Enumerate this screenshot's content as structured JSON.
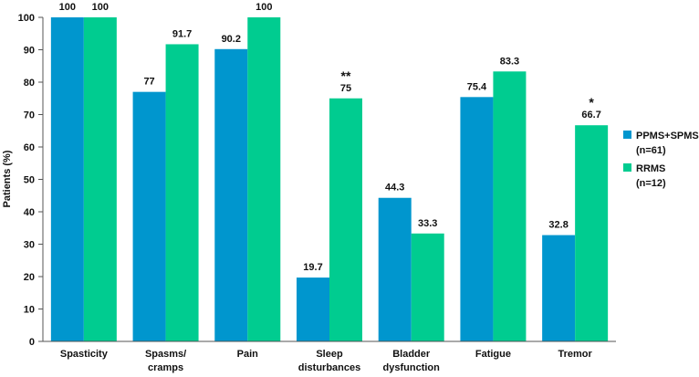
{
  "chart_data": {
    "type": "bar",
    "title": "",
    "xlabel": "",
    "ylabel": "Patients (%)",
    "ylim": [
      0,
      100
    ],
    "yticks": [
      0,
      10,
      20,
      30,
      40,
      50,
      60,
      70,
      80,
      90,
      100
    ],
    "categories": [
      [
        "Spasticity"
      ],
      [
        "Spasms/",
        "cramps"
      ],
      [
        "Pain"
      ],
      [
        "Sleep",
        "disturbances"
      ],
      [
        "Bladder",
        "dysfunction"
      ],
      [
        "Fatigue"
      ],
      [
        "Tremor"
      ]
    ],
    "series": [
      {
        "name": [
          "PPMS+SPMS",
          "(n=61)"
        ],
        "color": "#0096CE",
        "values": [
          100,
          77,
          90.2,
          19.7,
          44.3,
          75.4,
          32.8
        ]
      },
      {
        "name": [
          "RRMS",
          "(n=12)"
        ],
        "color": "#00CC90",
        "values": [
          100,
          91.7,
          100,
          75,
          33.3,
          83.3,
          66.7
        ]
      }
    ],
    "annotations": [
      {
        "category_index": 3,
        "series_index": 1,
        "text": "**"
      },
      {
        "category_index": 6,
        "series_index": 1,
        "text": "*"
      }
    ],
    "grid": false,
    "legend": "right"
  }
}
